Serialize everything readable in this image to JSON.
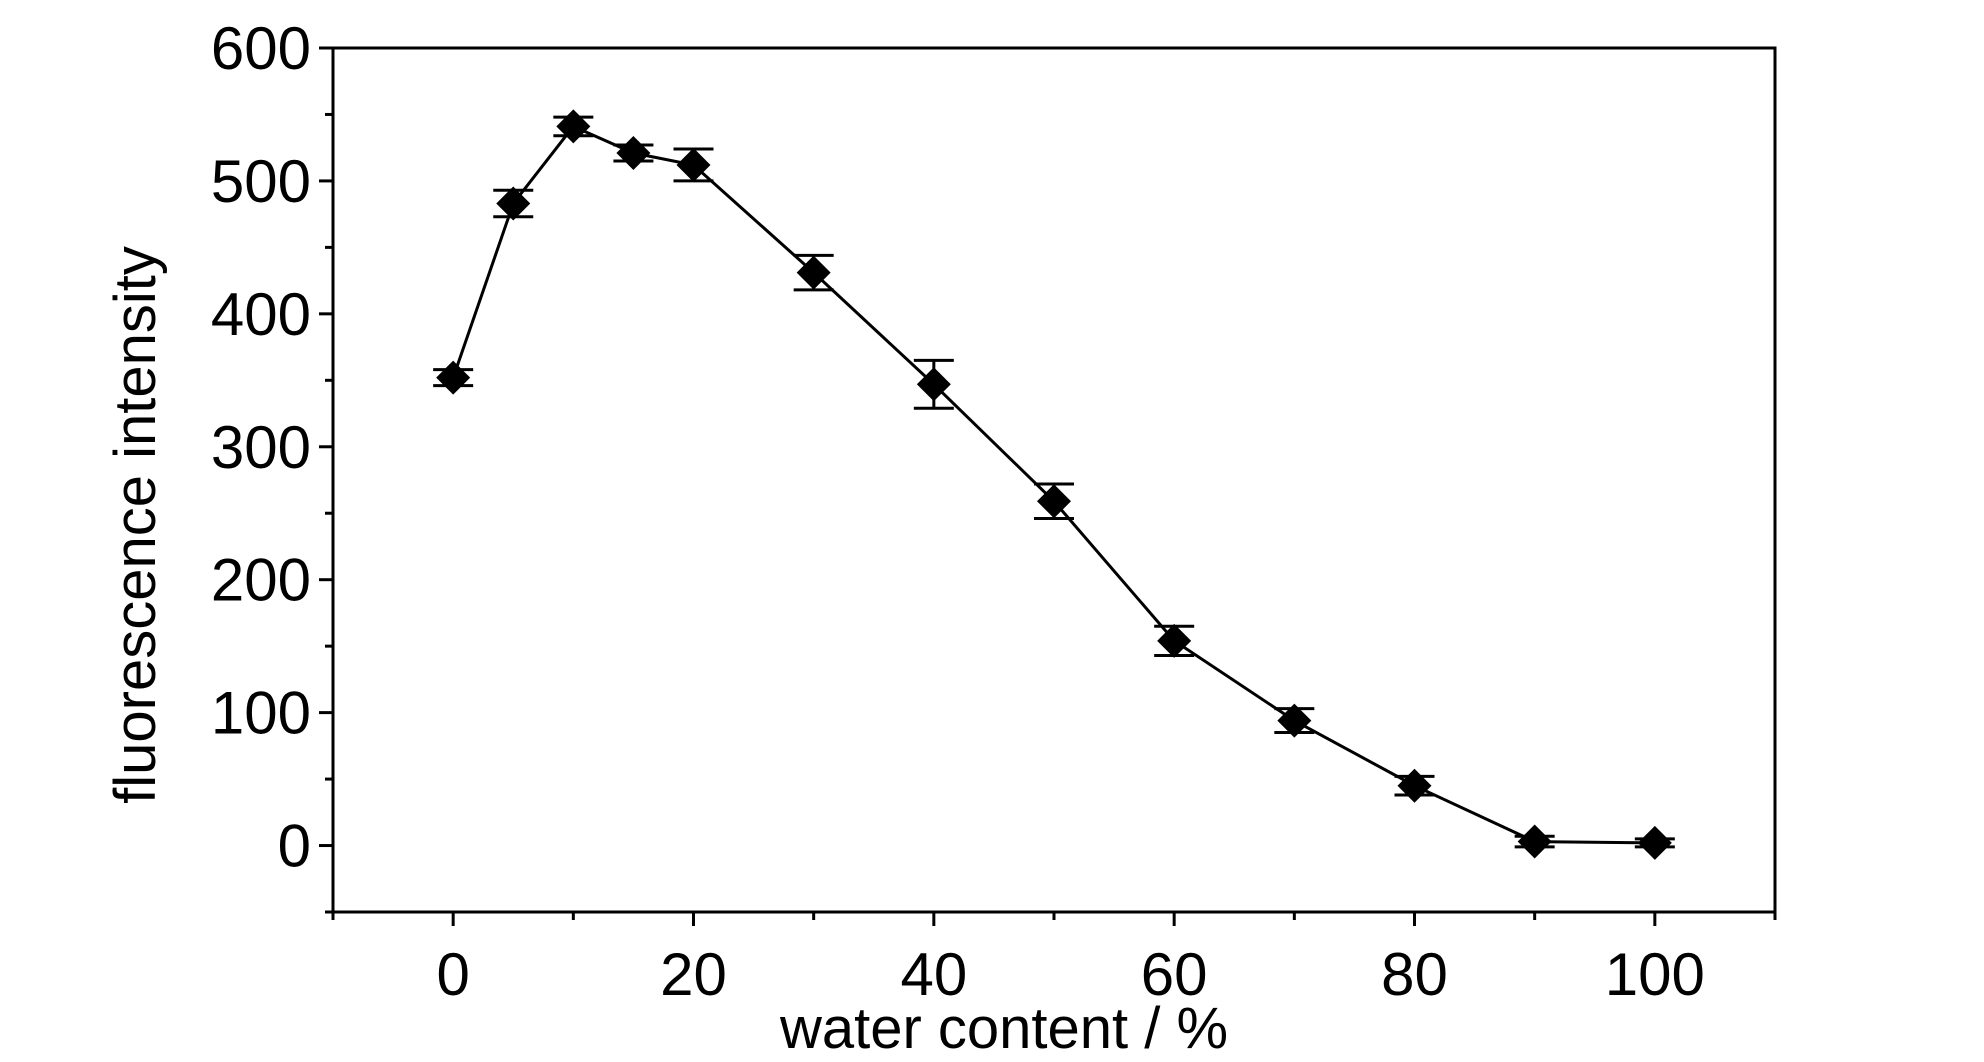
{
  "chart_data": {
    "type": "line",
    "title": "",
    "xlabel": "water content / %",
    "ylabel": "fluorescence intensity",
    "xlim": [
      -10,
      110
    ],
    "ylim": [
      -50,
      600
    ],
    "xticks": [
      0,
      20,
      40,
      60,
      80,
      100
    ],
    "yticks": [
      0,
      100,
      200,
      300,
      400,
      500,
      600
    ],
    "grid": false,
    "legend": "none",
    "marker": "diamond",
    "color": "#000000",
    "series": [
      {
        "x": [
          0,
          5,
          10,
          15,
          20,
          30,
          40,
          50,
          60,
          70,
          80,
          90,
          100
        ],
        "y": [
          352,
          483,
          541,
          521,
          512,
          431,
          347,
          259,
          154,
          94,
          45,
          3,
          2
        ],
        "error": [
          6,
          10,
          7,
          6,
          12,
          13,
          18,
          13,
          11,
          9,
          7,
          4,
          3
        ]
      }
    ]
  }
}
